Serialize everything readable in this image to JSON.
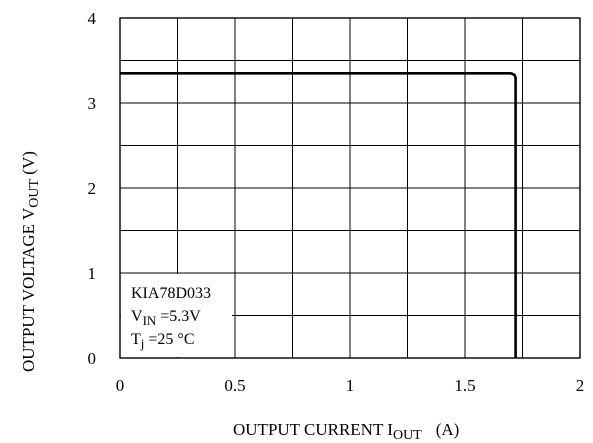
{
  "chart_data": {
    "type": "line",
    "xlabel": {
      "main": "OUTPUT CURRENT  I",
      "sub": "OUT",
      "unit": "(A)"
    },
    "ylabel": {
      "main": "OUTPUT  VOLTAGE  V",
      "sub": "OUT",
      "unit": " (V)"
    },
    "xlim": [
      0,
      2
    ],
    "ylim": [
      0,
      4
    ],
    "x_ticks": [
      "0",
      "0.5",
      "1",
      "1.5",
      "2"
    ],
    "y_ticks": [
      "0",
      "1",
      "2",
      "3",
      "4"
    ],
    "x_grid_step": 0.25,
    "y_grid_step": 0.5,
    "grid": true,
    "legend": "none",
    "series": [
      {
        "x": [
          0,
          1.7,
          1.715,
          1.72,
          1.72
        ],
        "y": [
          3.35,
          3.35,
          3.33,
          3.3,
          0
        ]
      }
    ],
    "annotation": {
      "device": "KIA78D033",
      "vin": {
        "main": "V",
        "sub": "IN",
        "rest": " =5.3V"
      },
      "tj": {
        "main": "T",
        "sub": "j",
        "rest": " =25 °C"
      }
    }
  }
}
